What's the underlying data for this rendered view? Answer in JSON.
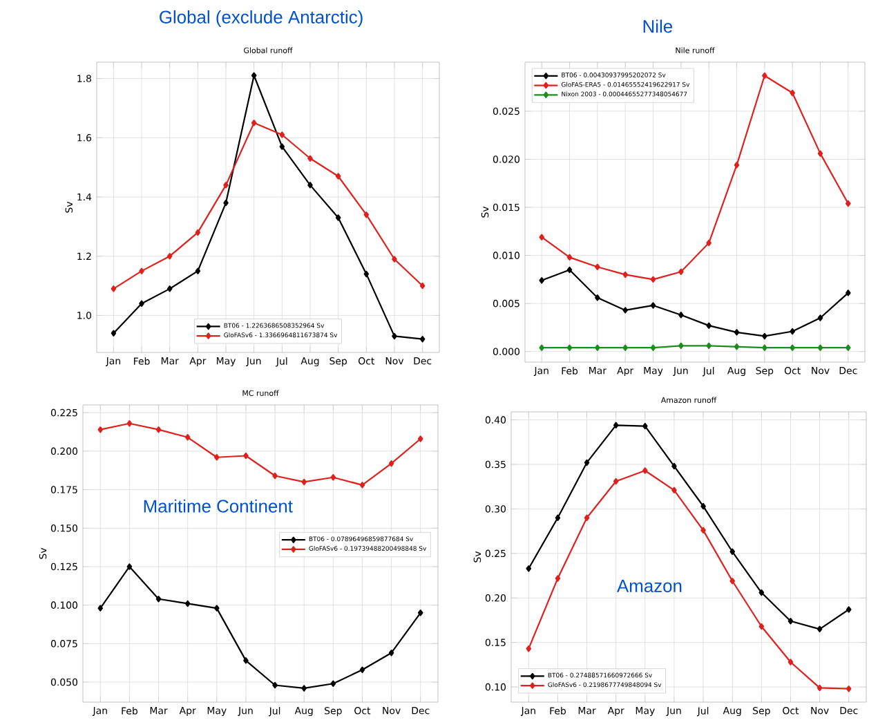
{
  "chart_data": [
    {
      "type": "line",
      "title": "Global runoff",
      "ylabel": "Sv",
      "annotations": [
        "Global (exclude Antarctic)"
      ],
      "categories": [
        "Jan",
        "Feb",
        "Mar",
        "Apr",
        "May",
        "Jun",
        "Jul",
        "Aug",
        "Sep",
        "Oct",
        "Nov",
        "Dec"
      ],
      "series": [
        {
          "name": "BT06 - 1.2263686508352964 Sv",
          "color": "#000000",
          "values": [
            0.94,
            1.04,
            1.09,
            1.15,
            1.38,
            1.81,
            1.57,
            1.44,
            1.33,
            1.14,
            0.93,
            0.92
          ]
        },
        {
          "name": "GloFASv6 - 1.3366964811673874 Sv",
          "color": "#e0201c",
          "values": [
            1.09,
            1.15,
            1.2,
            1.28,
            1.44,
            1.65,
            1.61,
            1.53,
            1.47,
            1.34,
            1.19,
            1.1
          ]
        }
      ],
      "ylim": [
        0.875,
        1.855
      ],
      "yticks": [
        {
          "value": 1.0,
          "label": "1.0"
        },
        {
          "value": 1.2,
          "label": "1.2"
        },
        {
          "value": 1.4,
          "label": "1.4"
        },
        {
          "value": 1.6,
          "label": "1.6"
        },
        {
          "value": 1.8,
          "label": "1.8"
        }
      ],
      "grid": true,
      "legend": "bottom",
      "marker": "diamond",
      "line_style": "solid"
    },
    {
      "type": "line",
      "title": "Nile runoff",
      "ylabel": "Sv",
      "annotations": [
        "Nile"
      ],
      "categories": [
        "Jan",
        "Feb",
        "Mar",
        "Apr",
        "May",
        "Jun",
        "Jul",
        "Aug",
        "Sep",
        "Oct",
        "Nov",
        "Dec"
      ],
      "series": [
        {
          "name": "BT06 - 0.00430937995202072 Sv",
          "color": "#000000",
          "values": [
            0.0074,
            0.0085,
            0.0056,
            0.0043,
            0.0048,
            0.0038,
            0.0027,
            0.002,
            0.0016,
            0.0021,
            0.0035,
            0.0061
          ]
        },
        {
          "name": "GloFAS-ERA5 - 0.01465552419622917 Sv",
          "color": "#e0201c",
          "values": [
            0.0119,
            0.0098,
            0.0088,
            0.008,
            0.0075,
            0.0083,
            0.0113,
            0.0194,
            0.0287,
            0.0269,
            0.0206,
            0.0154
          ]
        },
        {
          "name": "Nixon 2003 - 0.00044655277348054677",
          "color": "#1e8c1e",
          "values": [
            0.0004,
            0.0004,
            0.0004,
            0.0004,
            0.0004,
            0.0006,
            0.0006,
            0.0005,
            0.0004,
            0.0004,
            0.0004,
            0.0004
          ]
        }
      ],
      "ylim": [
        -0.0011,
        0.0301
      ],
      "yticks": [
        {
          "value": 0.0,
          "label": "0.000"
        },
        {
          "value": 0.005,
          "label": "0.005"
        },
        {
          "value": 0.01,
          "label": "0.010"
        },
        {
          "value": 0.015,
          "label": "0.015"
        },
        {
          "value": 0.02,
          "label": "0.020"
        },
        {
          "value": 0.025,
          "label": "0.025"
        }
      ],
      "grid": true,
      "legend": "top left",
      "marker": "diamond",
      "line_style": "solid"
    },
    {
      "type": "line",
      "title": "MC runoff",
      "ylabel": "Sv",
      "annotations": [
        "Maritime Continent"
      ],
      "categories": [
        "Jan",
        "Feb",
        "Mar",
        "Apr",
        "May",
        "Jun",
        "Jul",
        "Aug",
        "Sep",
        "Oct",
        "Nov",
        "Dec"
      ],
      "series": [
        {
          "name": "BT06 - 0.07896496859877684 Sv",
          "color": "#000000",
          "values": [
            0.098,
            0.125,
            0.104,
            0.101,
            0.098,
            0.064,
            0.048,
            0.046,
            0.049,
            0.058,
            0.069,
            0.095
          ]
        },
        {
          "name": "GloFASv6 - 0.19739488200498848 Sv",
          "color": "#e0201c",
          "values": [
            0.214,
            0.218,
            0.214,
            0.209,
            0.196,
            0.197,
            0.184,
            0.18,
            0.183,
            0.178,
            0.192,
            0.208
          ]
        }
      ],
      "ylim": [
        0.037,
        0.23
      ],
      "yticks": [
        {
          "value": 0.05,
          "label": "0.050"
        },
        {
          "value": 0.075,
          "label": "0.075"
        },
        {
          "value": 0.1,
          "label": "0.100"
        },
        {
          "value": 0.125,
          "label": "0.125"
        },
        {
          "value": 0.15,
          "label": "0.150"
        },
        {
          "value": 0.175,
          "label": "0.175"
        },
        {
          "value": 0.2,
          "label": "0.200"
        },
        {
          "value": 0.225,
          "label": "0.225"
        }
      ],
      "grid": true,
      "legend": "right",
      "marker": "diamond",
      "line_style": "solid"
    },
    {
      "type": "line",
      "title": "Amazon runoff",
      "ylabel": "Sv",
      "annotations": [
        "Amazon"
      ],
      "categories": [
        "Jan",
        "Feb",
        "Mar",
        "Apr",
        "May",
        "Jun",
        "Jul",
        "Aug",
        "Sep",
        "Oct",
        "Nov",
        "Dec"
      ],
      "series": [
        {
          "name": "BT06 - 0.27488571660972666 Sv",
          "color": "#000000",
          "values": [
            0.233,
            0.29,
            0.352,
            0.394,
            0.393,
            0.348,
            0.303,
            0.252,
            0.206,
            0.174,
            0.165,
            0.187
          ]
        },
        {
          "name": "GloFASv6 - 0.2198677749848094 Sv",
          "color": "#e0201c",
          "values": [
            0.143,
            0.222,
            0.29,
            0.331,
            0.343,
            0.321,
            0.276,
            0.219,
            0.168,
            0.128,
            0.099,
            0.098
          ]
        }
      ],
      "ylim": [
        0.083,
        0.409
      ],
      "yticks": [
        {
          "value": 0.1,
          "label": "0.10"
        },
        {
          "value": 0.15,
          "label": "0.15"
        },
        {
          "value": 0.2,
          "label": "0.20"
        },
        {
          "value": 0.25,
          "label": "0.25"
        },
        {
          "value": 0.3,
          "label": "0.30"
        },
        {
          "value": 0.35,
          "label": "0.35"
        },
        {
          "value": 0.4,
          "label": "0.40"
        }
      ],
      "grid": true,
      "legend": "bottom left",
      "marker": "diamond",
      "line_style": "solid"
    }
  ]
}
